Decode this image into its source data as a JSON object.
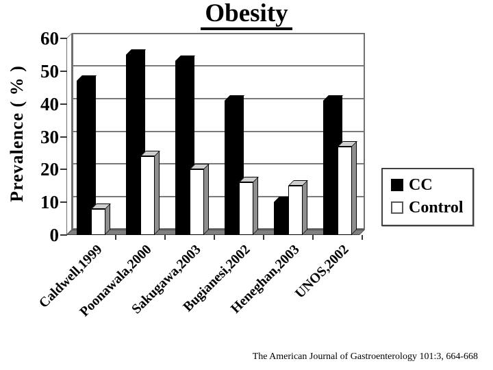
{
  "title": "Obesity",
  "source": "The American Journal of Gastroenterology 101:3, 664-668",
  "colors": {
    "cc_bar": "#000000",
    "control_bar": "#ffffff",
    "control_cap": "#cfcfcf",
    "control_side": "#8f8f8f",
    "floor": "#7f7f7f",
    "grid": "#7a7a7a",
    "text": "#000000"
  },
  "legend": {
    "items": [
      {
        "label": "CC",
        "swatch": "#000000"
      },
      {
        "label": "Control",
        "swatch": "#ffffff"
      }
    ]
  },
  "chart_data": {
    "type": "bar",
    "title": "Obesity",
    "xlabel": "",
    "ylabel": "Prevalence ( % )",
    "ylim": [
      0,
      60
    ],
    "yticks": [
      0,
      10,
      20,
      30,
      40,
      50,
      60
    ],
    "grid": true,
    "legend_position": "right-middle",
    "style": "3d-black-white",
    "categories": [
      "Caldwell,1999",
      "Poonawala,2000",
      "Sakugawa,2003",
      "Bugianesi,2002",
      "Heneghan,2003",
      "UNOS,2002"
    ],
    "series": [
      {
        "name": "CC",
        "color": "#000000",
        "values": [
          47,
          55,
          53,
          41,
          10,
          41
        ]
      },
      {
        "name": "Control",
        "color": "#ffffff",
        "values": [
          8,
          24,
          20,
          16,
          15,
          27
        ]
      }
    ]
  }
}
